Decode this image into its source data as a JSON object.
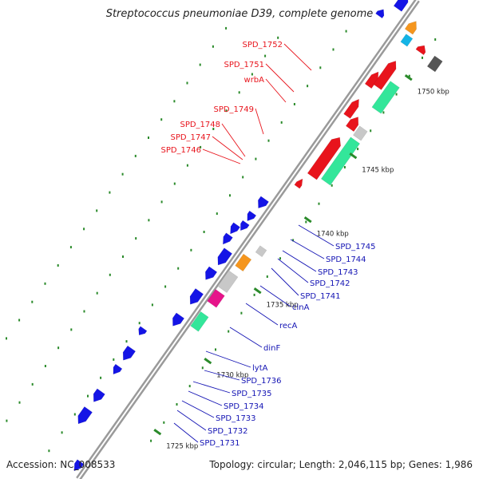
{
  "title": "Streptococcus pneumoniae D39, complete genome",
  "footer": {
    "accession": "Accession: NC_008533",
    "topology": "Topology: circular; Length: 2,046,115 bp; Genes: 1,986"
  },
  "colors": {
    "backbone": "#9a9a9a",
    "forward_gene": "#e8141c",
    "reverse_gene": "#1414e6",
    "rna": "#33e69a",
    "pink": "#e6148a",
    "orange": "#f5961e",
    "grey_gene": "#c8c8c8",
    "dark_gene": "#555555",
    "cyan": "#14b4e6",
    "tick": "#2a8a2a",
    "label_red": "#e8141c",
    "label_blue": "#1414b4"
  },
  "ticks": [
    "1750 kbp",
    "1745 kbp",
    "1740 kbp",
    "1735 kbp",
    "1730 kbp",
    "1725 kbp"
  ],
  "labels_red": [
    "SPD_1752",
    "SPD_1751",
    "wrbA",
    "SPD_1749",
    "SPD_1748",
    "SPD_1747",
    "SPD_1746"
  ],
  "labels_blue": [
    "SPD_1745",
    "SPD_1744",
    "SPD_1743",
    "SPD_1742",
    "SPD_1741",
    "cinA",
    "recA",
    "dinF",
    "lytA",
    "SPD_1736",
    "SPD_1735",
    "SPD_1734",
    "SPD_1733",
    "SPD_1732",
    "SPD_1731"
  ]
}
